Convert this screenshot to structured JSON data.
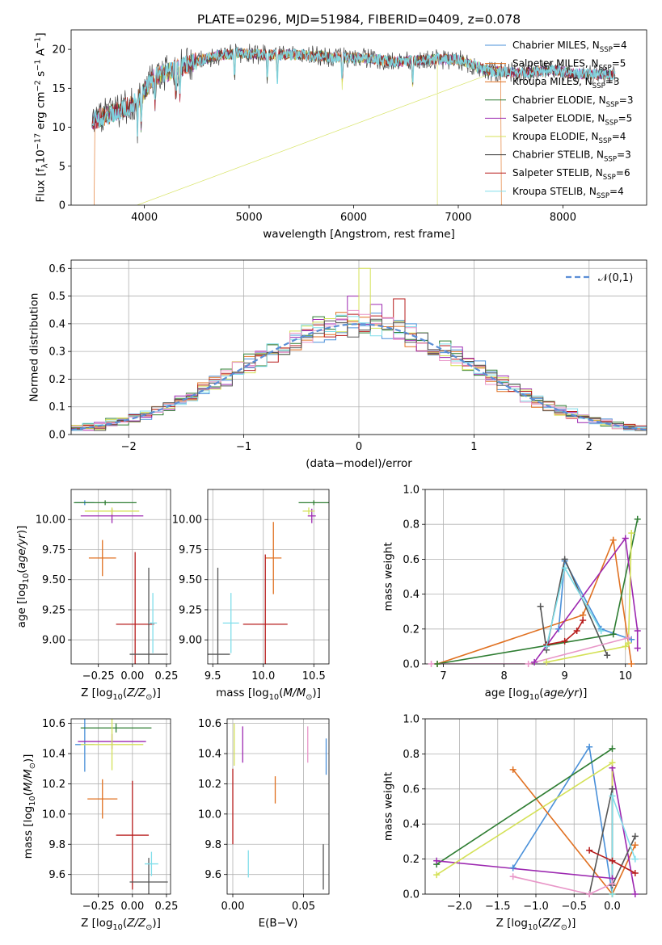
{
  "chart_data": [
    {
      "id": "spectrum",
      "type": "line",
      "title": "PLATE=0296, MJD=51984, FIBERID=0409, z=0.078",
      "xlabel": "wavelength [Angstrom, rest frame]",
      "ylabel": "Flux [f$_\\lambda$10$^{-17}$ erg cm$^{-2}$ s$^{-1}$ A$^{-1}$]",
      "xlim": [
        3300,
        8800
      ],
      "ylim": [
        0,
        22.5
      ],
      "xticks": [
        "4000",
        "5000",
        "6000",
        "7000",
        "8000"
      ],
      "yticks": [
        "0",
        "5",
        "10",
        "15",
        "20"
      ],
      "grid": false,
      "legend_position": "top-right",
      "series": [
        {
          "name": "Chabrier MILES, N$_{SSP}$=4",
          "color": "#4a90d9"
        },
        {
          "name": "Salpeter MILES, N$_{SSP}$=5",
          "color": "#e07020"
        },
        {
          "name": "Kroupa MILES, N$_{SSP}$=3",
          "color": "#e07020"
        },
        {
          "name": "Chabrier ELODIE, N$_{SSP}$=3",
          "color": "#2e7d32"
        },
        {
          "name": "Salpeter ELODIE, N$_{SSP}$=5",
          "color": "#9c27b0"
        },
        {
          "name": "Kroupa ELODIE, N$_{SSP}$=4",
          "color": "#d4e157"
        },
        {
          "name": "Chabrier STELIB, N$_{SSP}$=3",
          "color": "#333333"
        },
        {
          "name": "Salpeter STELIB, N$_{SSP}$=6",
          "color": "#b71c1c"
        },
        {
          "name": "Kroupa STELIB, N$_{SSP}$=4",
          "color": "#80deea"
        }
      ],
      "continuum": {
        "x": [
          3500,
          3700,
          3900,
          4000,
          4100,
          4300,
          4500,
          4700,
          4900,
          5200,
          5500,
          5800,
          6100,
          6400,
          6700,
          7000,
          7300,
          7600,
          7900,
          8200,
          8500
        ],
        "y": [
          10.8,
          11.8,
          13.0,
          14.5,
          16.5,
          17.5,
          18.5,
          19.2,
          19.5,
          19.3,
          19.3,
          19.0,
          18.9,
          18.4,
          18.7,
          18.7,
          17.2,
          17.0,
          17.3,
          16.8,
          16.8
        ]
      }
    },
    {
      "id": "residuals",
      "type": "histogram",
      "xlabel": "(data-model)/error",
      "ylabel": "Normed distribution",
      "xlim": [
        -2.5,
        2.5
      ],
      "ylim": [
        0,
        0.63
      ],
      "xticks": [
        "−2",
        "−1",
        "0",
        "1",
        "2"
      ],
      "yticks": [
        "0.0",
        "0.1",
        "0.2",
        "0.3",
        "0.4",
        "0.5",
        "0.6"
      ],
      "grid": true,
      "legend_position": "top-right",
      "legend_label": "$\\mathcal{N}(0,1)$",
      "normal_curve": {
        "mean": 0,
        "sigma": 1,
        "color": "#5b8ed6"
      },
      "bin_width": 0.1,
      "peak_values": [
        0.41,
        0.6,
        0.5,
        0.49,
        0.47
      ]
    },
    {
      "id": "age-vs-Z",
      "type": "errorbar",
      "xlabel": "Z [log$_{10}$($Z/Z_\\odot$)]",
      "ylabel": "age  [log$_{10}$($age/yr$)]",
      "xlim": [
        -0.45,
        0.28
      ],
      "ylim": [
        8.8,
        10.25
      ],
      "xticks": [
        "−0.25",
        "0.00",
        "0.25"
      ],
      "yticks": [
        "9.00",
        "9.25",
        "9.50",
        "9.75",
        "10.00"
      ],
      "grid": true,
      "points": [
        {
          "x": -0.35,
          "y": 10.14,
          "xerr": 0.07,
          "yerr": 0.02,
          "color": "#4a90d9"
        },
        {
          "x": -0.22,
          "y": 9.68,
          "xerr": 0.1,
          "yerr": 0.15,
          "color": "#e07020"
        },
        {
          "x": -0.2,
          "y": 10.14,
          "xerr": 0.23,
          "yerr": 0.02,
          "color": "#2e7d32"
        },
        {
          "x": -0.15,
          "y": 10.03,
          "xerr": 0.23,
          "yerr": 0.06,
          "color": "#9c27b0"
        },
        {
          "x": -0.15,
          "y": 10.07,
          "xerr": 0.2,
          "yerr": 0.03,
          "color": "#d4e157"
        },
        {
          "x": 0.02,
          "y": 9.13,
          "xerr": 0.14,
          "yerr": 0.6,
          "color": "#b71c1c"
        },
        {
          "x": 0.12,
          "y": 8.88,
          "xerr": 0.14,
          "yerr": 0.72,
          "color": "#555555"
        },
        {
          "x": 0.15,
          "y": 9.14,
          "xerr": 0.03,
          "yerr": 0.25,
          "color": "#80deea"
        }
      ]
    },
    {
      "id": "age-vs-mass",
      "type": "errorbar",
      "xlabel": "mass [log$_{10}$($M/M_\\odot$)]",
      "ylabel": "",
      "xlim": [
        9.45,
        10.65
      ],
      "ylim": [
        8.8,
        10.25
      ],
      "xticks": [
        "9.5",
        "10.0",
        "10.5"
      ],
      "yticks": [
        "9.00",
        "9.25",
        "9.50",
        "9.75",
        "10.00"
      ],
      "grid": true,
      "points": [
        {
          "x": 10.5,
          "y": 10.14,
          "xerr": 0.15,
          "yerr": 0.02,
          "color": "#2e7d32"
        },
        {
          "x": 10.48,
          "y": 10.03,
          "xerr": 0.04,
          "yerr": 0.06,
          "color": "#9c27b0"
        },
        {
          "x": 10.45,
          "y": 10.07,
          "xerr": 0.06,
          "yerr": 0.03,
          "color": "#d4e157"
        },
        {
          "x": 10.1,
          "y": 9.68,
          "xerr": 0.08,
          "yerr": 0.3,
          "color": "#e07020"
        },
        {
          "x": 10.02,
          "y": 9.13,
          "xerr": 0.22,
          "yerr": 0.58,
          "color": "#b71c1c"
        },
        {
          "x": 9.68,
          "y": 9.14,
          "xerr": 0.08,
          "yerr": 0.25,
          "color": "#80deea"
        },
        {
          "x": 9.55,
          "y": 8.88,
          "xerr": 0.12,
          "yerr": 0.72,
          "color": "#555555"
        }
      ]
    },
    {
      "id": "weight-vs-age",
      "type": "line",
      "xlabel": "age  [log$_{10}$($age/yr$)]",
      "ylabel": "mass weight",
      "xlim": [
        6.7,
        10.35
      ],
      "ylim": [
        0,
        1.0
      ],
      "xticks": [
        "7",
        "8",
        "9",
        "10"
      ],
      "yticks": [
        "0.0",
        "0.2",
        "0.4",
        "0.6",
        "0.8",
        "1.0"
      ],
      "grid": true,
      "series": [
        {
          "color": "#4a90d9",
          "x": [
            8.9,
            9.0,
            9.6,
            10.1
          ],
          "y": [
            0.2,
            0.59,
            0.2,
            0.14
          ]
        },
        {
          "color": "#e07020",
          "x": [
            6.9,
            9.3,
            9.8,
            10.1
          ],
          "y": [
            0.0,
            0.28,
            0.71,
            0.0
          ]
        },
        {
          "color": "#2e7d32",
          "x": [
            6.9,
            9.8,
            10.2
          ],
          "y": [
            0.0,
            0.17,
            0.83
          ]
        },
        {
          "color": "#9c27b0",
          "x": [
            8.5,
            10.0,
            10.2,
            10.2
          ],
          "y": [
            0.01,
            0.72,
            0.19,
            0.09
          ]
        },
        {
          "color": "#d4e157",
          "x": [
            8.7,
            10.0,
            10.05,
            10.1
          ],
          "y": [
            0.01,
            0.1,
            0.12,
            0.75
          ]
        },
        {
          "color": "#555555",
          "x": [
            8.6,
            8.7,
            9.0,
            9.7
          ],
          "y": [
            0.33,
            0.08,
            0.6,
            0.05
          ]
        },
        {
          "color": "#b71c1c",
          "x": [
            8.7,
            9.0,
            9.2,
            9.3
          ],
          "y": [
            0.11,
            0.13,
            0.19,
            0.25
          ]
        },
        {
          "color": "#80deea",
          "x": [
            8.7,
            9.0,
            9.6
          ],
          "y": [
            0.1,
            0.55,
            0.19
          ]
        },
        {
          "color": "#e896c8",
          "x": [
            6.8,
            8.4,
            10.05
          ],
          "y": [
            0.0,
            0.0,
            0.15
          ]
        }
      ]
    },
    {
      "id": "mass-vs-Z",
      "type": "errorbar",
      "xlabel": "Z [log$_{10}$($Z/Z_\\odot$)]",
      "ylabel": "mass [log$_{10}$($M/M_\\odot$)]",
      "xlim": [
        -0.45,
        0.28
      ],
      "ylim": [
        9.47,
        10.63
      ],
      "xticks": [
        "−0.25",
        "0.00",
        "0.25"
      ],
      "yticks": [
        "9.6",
        "9.8",
        "10.0",
        "10.2",
        "10.4",
        "10.6"
      ],
      "grid": true,
      "points": [
        {
          "x": -0.35,
          "y": 10.46,
          "xerr": 0.07,
          "yerr": 0.18,
          "color": "#4a90d9"
        },
        {
          "x": -0.22,
          "y": 10.1,
          "xerr": 0.11,
          "yerr": 0.13,
          "color": "#e07020"
        },
        {
          "x": -0.12,
          "y": 10.57,
          "xerr": 0.26,
          "yerr": 0.03,
          "color": "#2e7d32"
        },
        {
          "x": -0.15,
          "y": 10.48,
          "xerr": 0.25,
          "yerr": 0.05,
          "color": "#9c27b0"
        },
        {
          "x": -0.15,
          "y": 10.46,
          "xerr": 0.23,
          "yerr": 0.17,
          "color": "#d4e157"
        },
        {
          "x": 0.0,
          "y": 9.86,
          "xerr": 0.12,
          "yerr": 0.36,
          "color": "#b71c1c"
        },
        {
          "x": 0.12,
          "y": 9.55,
          "xerr": 0.14,
          "yerr": 0.16,
          "color": "#555555"
        },
        {
          "x": 0.14,
          "y": 9.67,
          "xerr": 0.05,
          "yerr": 0.08,
          "color": "#80deea"
        }
      ]
    },
    {
      "id": "mass-vs-EBV",
      "type": "errorbar",
      "xlabel": "E(B-V)",
      "ylabel": "",
      "xlim": [
        -0.004,
        0.068
      ],
      "ylim": [
        9.47,
        10.63
      ],
      "xticks": [
        "0.00",
        "0.05"
      ],
      "yticks": [
        "9.6",
        "9.8",
        "10.0",
        "10.2",
        "10.4",
        "10.6"
      ],
      "grid": true,
      "points": [
        {
          "x": 0.0,
          "y": 10.05,
          "xerr": 0,
          "yerr": 0.25,
          "color": "#b71c1c"
        },
        {
          "x": 0.001,
          "y": 10.46,
          "xerr": 0,
          "yerr": 0.14,
          "color": "#d4e157"
        },
        {
          "x": 0.007,
          "y": 10.46,
          "xerr": 0,
          "yerr": 0.12,
          "color": "#9c27b0"
        },
        {
          "x": 0.011,
          "y": 9.67,
          "xerr": 0,
          "yerr": 0.09,
          "color": "#80deea"
        },
        {
          "x": 0.03,
          "y": 10.16,
          "xerr": 0,
          "yerr": 0.09,
          "color": "#e07020"
        },
        {
          "x": 0.053,
          "y": 10.46,
          "xerr": 0,
          "yerr": 0.12,
          "color": "#e896c8"
        },
        {
          "x": 0.064,
          "y": 9.65,
          "xerr": 0,
          "yerr": 0.15,
          "color": "#555555"
        },
        {
          "x": 0.066,
          "y": 10.38,
          "xerr": 0,
          "yerr": 0.12,
          "color": "#4a90d9"
        }
      ]
    },
    {
      "id": "weight-vs-Z",
      "type": "line",
      "xlabel": "Z [log$_{10}$($Z/Z_\\odot$)]",
      "ylabel": "mass weight",
      "xlim": [
        -2.45,
        0.45
      ],
      "ylim": [
        0,
        1.0
      ],
      "xticks": [
        "−2.0",
        "−1.5",
        "−1.0",
        "−0.5",
        "0.0"
      ],
      "yticks": [
        "0.0",
        "0.2",
        "0.4",
        "0.6",
        "0.8",
        "1.0"
      ],
      "grid": true,
      "series": [
        {
          "color": "#4a90d9",
          "x": [
            -1.3,
            -0.3,
            0.0
          ],
          "y": [
            0.15,
            0.84,
            0.0
          ]
        },
        {
          "color": "#e07020",
          "x": [
            -1.3,
            0.0,
            0.3
          ],
          "y": [
            0.71,
            0.0,
            0.28
          ]
        },
        {
          "color": "#2e7d32",
          "x": [
            -2.3,
            0.0
          ],
          "y": [
            0.17,
            0.83
          ]
        },
        {
          "color": "#9c27b0",
          "x": [
            -2.3,
            0.0,
            0.0,
            0.3
          ],
          "y": [
            0.19,
            0.09,
            0.72,
            0.0
          ]
        },
        {
          "color": "#d4e157",
          "x": [
            -2.3,
            0.0,
            0.0
          ],
          "y": [
            0.11,
            0.75,
            0.0
          ]
        },
        {
          "color": "#555555",
          "x": [
            -0.3,
            0.0,
            0.0,
            0.3
          ],
          "y": [
            0.0,
            0.6,
            0.05,
            0.33
          ]
        },
        {
          "color": "#b71c1c",
          "x": [
            -0.3,
            0.0,
            0.3
          ],
          "y": [
            0.25,
            0.19,
            0.12
          ]
        },
        {
          "color": "#80deea",
          "x": [
            0.0,
            0.0,
            0.3
          ],
          "y": [
            0.0,
            0.56,
            0.2
          ]
        },
        {
          "color": "#e896c8",
          "x": [
            -1.3,
            -0.3,
            0.0
          ],
          "y": [
            0.1,
            0.0,
            0.06
          ]
        }
      ]
    }
  ]
}
